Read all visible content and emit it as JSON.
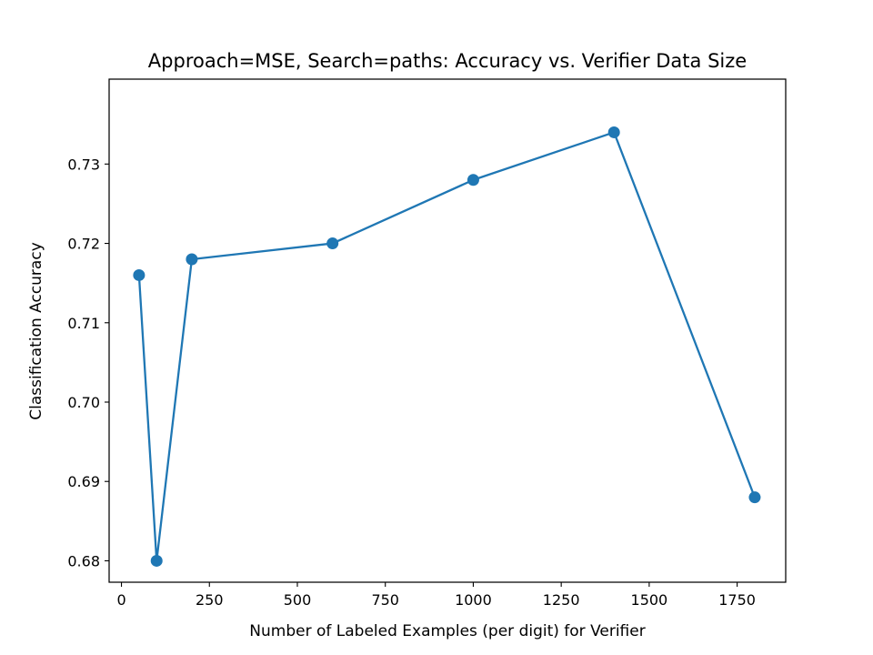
{
  "chart_data": {
    "type": "line",
    "title": "Approach=MSE, Search=paths: Accuracy vs. Verifier Data Size",
    "xlabel": "Number of Labeled Examples (per digit) for Verifier",
    "ylabel": "Classification Accuracy",
    "x_ticks": [
      0,
      250,
      500,
      750,
      1000,
      1250,
      1500,
      1750
    ],
    "x_tick_labels": [
      "0",
      "250",
      "500",
      "750",
      "1000",
      "1250",
      "1500",
      "1750"
    ],
    "y_ticks": [
      0.68,
      0.69,
      0.7,
      0.71,
      0.72,
      0.73
    ],
    "y_tick_labels": [
      "0.68",
      "0.69",
      "0.70",
      "0.71",
      "0.72",
      "0.73"
    ],
    "xlim": [
      -35,
      1888
    ],
    "ylim": [
      0.6773,
      0.7407
    ],
    "grid": false,
    "series": [
      {
        "color": "#1f77b4",
        "marker": "circle",
        "x": [
          50,
          100,
          200,
          600,
          1000,
          1400,
          1800
        ],
        "y": [
          0.716,
          0.68,
          0.718,
          0.72,
          0.728,
          0.734,
          0.688
        ]
      }
    ]
  }
}
